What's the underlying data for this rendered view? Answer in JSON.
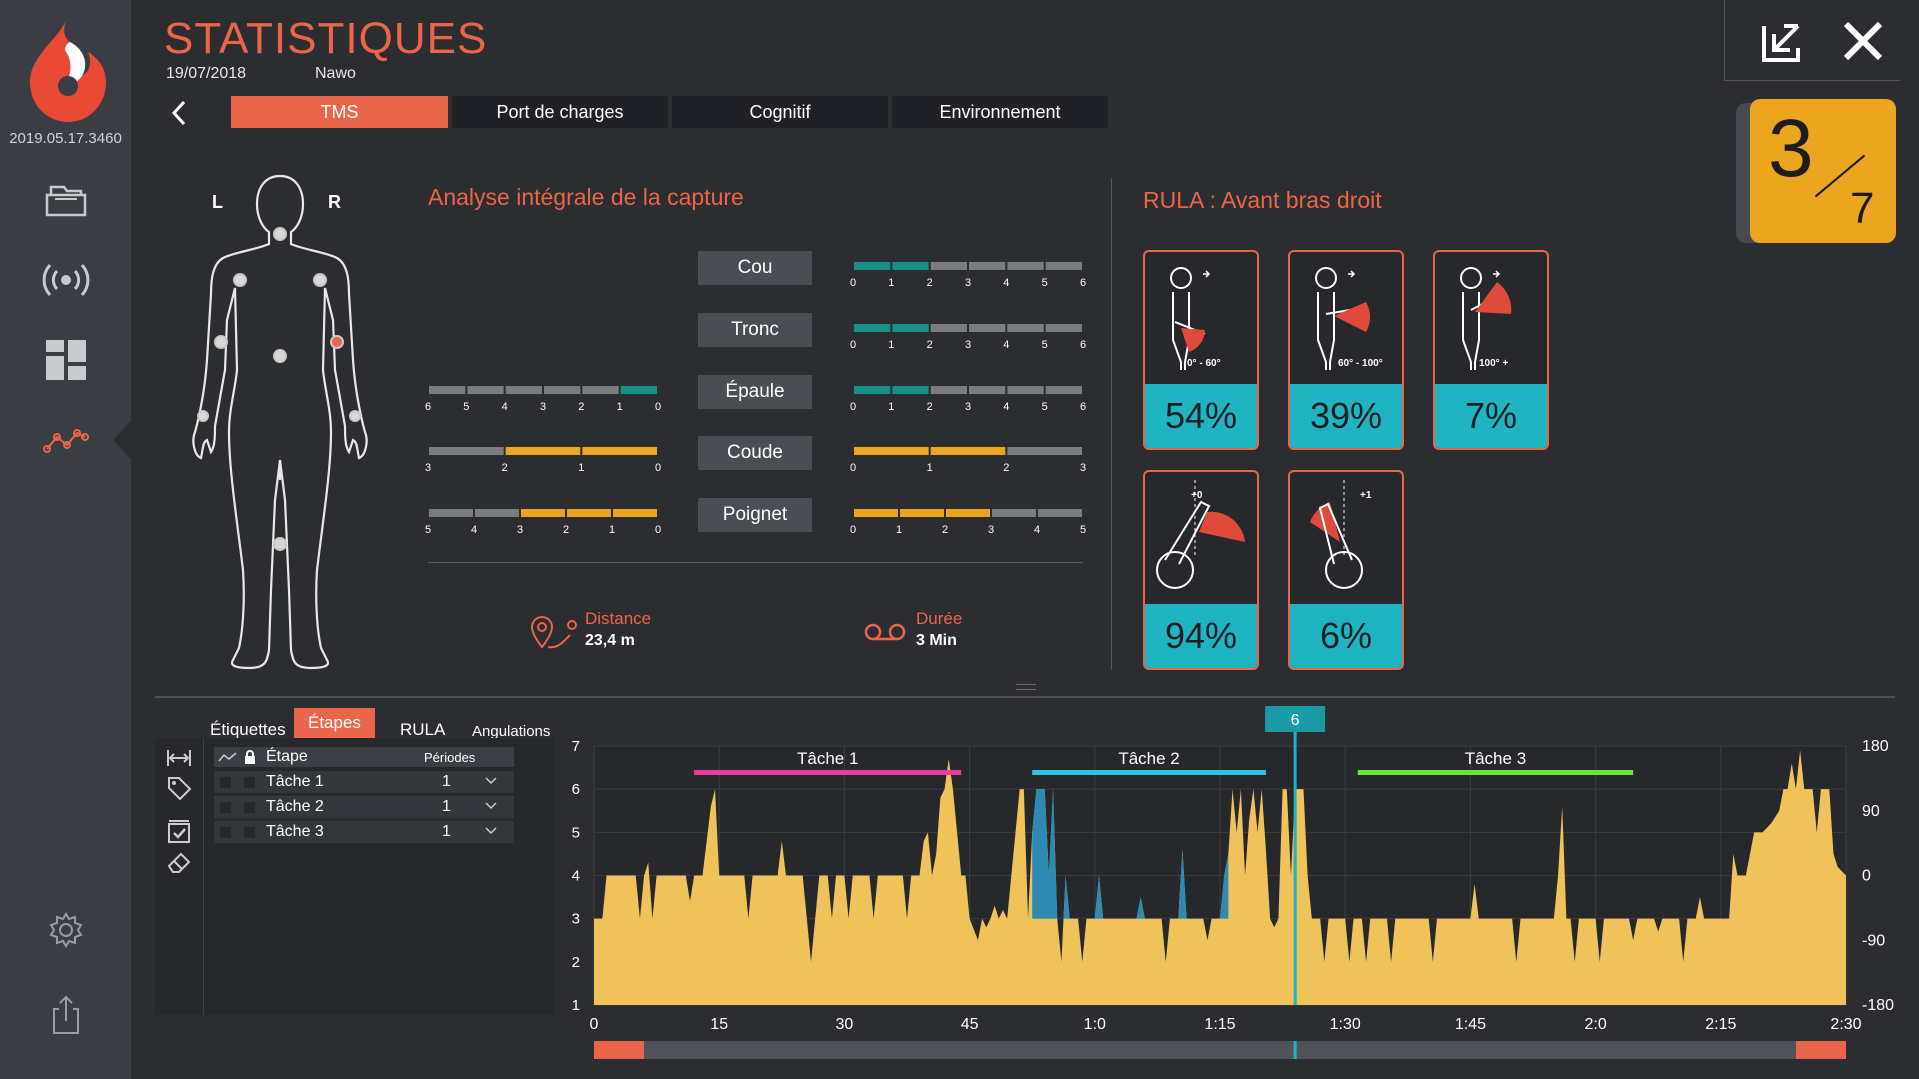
{
  "app": {
    "version": "2019.05.17.3460"
  },
  "header": {
    "title": "STATISTIQUES",
    "date": "19/07/2018",
    "user": "Nawo"
  },
  "tabs": [
    {
      "label": "TMS",
      "active": true
    },
    {
      "label": "Port de charges",
      "active": false
    },
    {
      "label": "Cognitif",
      "active": false
    },
    {
      "label": "Environnement",
      "active": false
    }
  ],
  "score": {
    "value": "3",
    "max": "7",
    "color": "#eba51e"
  },
  "body": {
    "left_label": "L",
    "right_label": "R"
  },
  "analysis": {
    "title": "Analyse intégrale de la capture",
    "segments": [
      {
        "name": "Cou",
        "left": null,
        "right": {
          "scale": 6,
          "filled": 2,
          "color": "#1a8f8a"
        }
      },
      {
        "name": "Tronc",
        "left": null,
        "right": {
          "scale": 6,
          "filled": 2,
          "color": "#1a8f8a"
        }
      },
      {
        "name": "Épaule",
        "left": {
          "scale": 6,
          "filled": 1,
          "color": "#1a8f8a"
        },
        "right": {
          "scale": 6,
          "filled": 2,
          "color": "#1a8f8a"
        }
      },
      {
        "name": "Coude",
        "left": {
          "scale": 3,
          "filled": 2,
          "color": "#eba51e"
        },
        "right": {
          "scale": 3,
          "filled": 2,
          "color": "#eba51e"
        }
      },
      {
        "name": "Poignet",
        "left": {
          "scale": 5,
          "filled": 3,
          "color": "#eba51e"
        },
        "right": {
          "scale": 5,
          "filled": 3,
          "color": "#eba51e"
        }
      }
    ],
    "distance_label": "Distance",
    "distance_value": "23,4 m",
    "duration_label": "Durée",
    "duration_value": "3 Min"
  },
  "rula": {
    "title": "RULA : Avant bras droit",
    "cards": [
      {
        "caption": "0° - 60°",
        "percent": "54%",
        "icon": "forearm-low-icon"
      },
      {
        "caption": "60° - 100°",
        "percent": "39%",
        "icon": "forearm-mid-icon"
      },
      {
        "caption": "100° +",
        "percent": "7%",
        "icon": "forearm-high-icon"
      },
      {
        "caption": "+0",
        "percent": "94%",
        "icon": "forearm-inward-icon"
      },
      {
        "caption": "+1",
        "percent": "6%",
        "icon": "forearm-outward-icon"
      }
    ]
  },
  "bottom": {
    "tabs": [
      {
        "label": "Étiquettes",
        "active": false
      },
      {
        "label": "Étapes",
        "active": true
      },
      {
        "label": "RULA",
        "active": false
      },
      {
        "label": "Angulations",
        "active": false
      }
    ],
    "steps_header": {
      "name": "Étape",
      "periods": "Périodes"
    },
    "steps": [
      {
        "name": "Tâche 1",
        "periods": "1"
      },
      {
        "name": "Tâche 2",
        "periods": "1"
      },
      {
        "name": "Tâche 3",
        "periods": "1"
      }
    ]
  },
  "chart_data": {
    "type": "area",
    "x_ticks": [
      "0",
      "15",
      "30",
      "45",
      "1:0",
      "1:15",
      "1:30",
      "1:45",
      "2:0",
      "2:15",
      "2:30"
    ],
    "y_left_ticks": [
      "7",
      "6",
      "5",
      "4",
      "3",
      "2",
      "1"
    ],
    "y_right_ticks": [
      "180",
      "90",
      "0",
      "-90",
      "-180"
    ],
    "ylim_left": [
      1,
      7
    ],
    "xlim": [
      0,
      150
    ],
    "cursor": {
      "label": "6",
      "x": 84
    },
    "tasks": [
      {
        "name": "Tâche 1",
        "start": 12,
        "end": 44,
        "color": "#e93f9b"
      },
      {
        "name": "Tâche 2",
        "start": 52.5,
        "end": 80.5,
        "color": "#2fc3e8"
      },
      {
        "name": "Tâche 3",
        "start": 91.5,
        "end": 124.5,
        "color": "#6be23a"
      }
    ],
    "highlight": {
      "start": 52.5,
      "end": 76,
      "color": "#2f8ab3"
    },
    "series": [
      {
        "name": "score",
        "color": "#f0c35a",
        "points": [
          [
            0,
            3
          ],
          [
            1,
            3
          ],
          [
            1.5,
            4
          ],
          [
            5,
            4
          ],
          [
            5.5,
            3
          ],
          [
            6,
            4
          ],
          [
            6.5,
            4.3
          ],
          [
            7,
            3
          ],
          [
            7.5,
            4
          ],
          [
            11,
            4
          ],
          [
            11.5,
            3.4
          ],
          [
            12,
            4
          ],
          [
            13,
            4
          ],
          [
            14,
            5.6
          ],
          [
            14.5,
            6
          ],
          [
            15,
            4
          ],
          [
            18,
            4
          ],
          [
            18.5,
            3
          ],
          [
            19,
            4
          ],
          [
            22,
            4
          ],
          [
            22.5,
            4.8
          ],
          [
            23,
            4
          ],
          [
            25,
            4
          ],
          [
            25.5,
            3
          ],
          [
            26,
            2
          ],
          [
            26.5,
            3
          ],
          [
            27,
            4
          ],
          [
            28,
            4
          ],
          [
            28.5,
            3
          ],
          [
            29,
            4
          ],
          [
            30,
            4
          ],
          [
            30.5,
            3
          ],
          [
            31,
            4
          ],
          [
            33,
            4
          ],
          [
            33.5,
            3
          ],
          [
            34,
            4
          ],
          [
            37,
            4
          ],
          [
            37.5,
            3
          ],
          [
            38,
            4
          ],
          [
            39,
            4
          ],
          [
            39.5,
            4.8
          ],
          [
            40,
            5
          ],
          [
            40.5,
            4
          ],
          [
            41,
            4.5
          ],
          [
            41.5,
            5.8
          ],
          [
            42,
            6
          ],
          [
            42.5,
            6.7
          ],
          [
            43,
            6
          ],
          [
            43.5,
            5
          ],
          [
            44,
            4
          ],
          [
            44.5,
            4
          ],
          [
            45,
            3
          ],
          [
            46,
            2.5
          ],
          [
            46.5,
            3
          ],
          [
            47,
            2.8
          ],
          [
            47.5,
            3
          ],
          [
            48,
            3.3
          ],
          [
            48.5,
            3
          ],
          [
            49,
            3.2
          ],
          [
            49.5,
            3
          ],
          [
            50,
            4
          ],
          [
            50.5,
            5
          ],
          [
            51,
            6
          ],
          [
            51.5,
            6
          ],
          [
            52,
            3
          ],
          [
            52.5,
            5
          ],
          [
            53,
            6
          ],
          [
            54,
            6
          ],
          [
            54.5,
            4
          ],
          [
            55,
            6
          ],
          [
            55.5,
            3
          ],
          [
            56,
            2
          ],
          [
            56.5,
            4
          ],
          [
            57,
            3
          ],
          [
            58,
            3
          ],
          [
            58.5,
            2
          ],
          [
            59,
            3
          ],
          [
            60,
            3
          ],
          [
            60.5,
            4
          ],
          [
            61,
            3
          ],
          [
            65,
            3
          ],
          [
            65.5,
            3.5
          ],
          [
            66,
            3
          ],
          [
            68,
            3
          ],
          [
            68.5,
            2
          ],
          [
            69,
            3
          ],
          [
            70,
            3
          ],
          [
            70.5,
            4.6
          ],
          [
            71,
            3
          ],
          [
            73,
            3
          ],
          [
            73.5,
            2.5
          ],
          [
            74,
            3
          ],
          [
            75,
            3
          ],
          [
            75.5,
            4
          ],
          [
            76,
            4.5
          ],
          [
            76.5,
            6
          ],
          [
            77,
            5
          ],
          [
            77.5,
            6
          ],
          [
            78,
            4
          ],
          [
            78.5,
            5.3
          ],
          [
            79,
            6
          ],
          [
            79.5,
            5
          ],
          [
            80,
            6
          ],
          [
            80.5,
            4.6
          ],
          [
            81,
            3
          ],
          [
            81.5,
            2.8
          ],
          [
            82,
            3
          ],
          [
            82.5,
            6
          ],
          [
            83,
            6
          ],
          [
            83.5,
            4
          ],
          [
            84,
            6
          ],
          [
            85,
            6
          ],
          [
            85.5,
            4
          ],
          [
            86,
            3
          ],
          [
            87,
            3
          ],
          [
            87.5,
            2
          ],
          [
            88,
            3
          ],
          [
            90,
            3
          ],
          [
            90.5,
            2
          ],
          [
            91,
            3
          ],
          [
            92,
            3
          ],
          [
            92.5,
            2
          ],
          [
            93,
            3
          ],
          [
            95,
            3
          ],
          [
            95.5,
            2
          ],
          [
            96,
            3
          ],
          [
            100,
            3
          ],
          [
            100.5,
            2
          ],
          [
            101,
            3
          ],
          [
            105,
            3
          ],
          [
            105.5,
            3.8
          ],
          [
            106,
            3
          ],
          [
            110,
            3
          ],
          [
            110.5,
            2
          ],
          [
            111,
            3
          ],
          [
            115,
            3
          ],
          [
            115.5,
            4
          ],
          [
            116,
            5.6
          ],
          [
            116.5,
            3
          ],
          [
            117,
            3
          ],
          [
            117.5,
            2
          ],
          [
            118,
            3
          ],
          [
            120,
            3
          ],
          [
            120.5,
            2
          ],
          [
            121,
            3
          ],
          [
            124,
            3
          ],
          [
            124.5,
            2.5
          ],
          [
            125,
            3
          ],
          [
            127,
            3
          ],
          [
            127.5,
            2.7
          ],
          [
            128,
            3
          ],
          [
            130,
            3
          ],
          [
            130.5,
            2
          ],
          [
            131,
            3
          ],
          [
            132,
            3
          ],
          [
            132.5,
            3.5
          ],
          [
            133,
            3
          ],
          [
            136,
            3
          ],
          [
            136.5,
            4.5
          ],
          [
            137,
            4
          ],
          [
            138,
            4
          ],
          [
            138.5,
            4.5
          ],
          [
            139,
            5
          ],
          [
            140,
            5
          ],
          [
            141,
            5.2
          ],
          [
            142,
            5.5
          ],
          [
            142.5,
            6
          ],
          [
            143,
            6
          ],
          [
            143.5,
            6.6
          ],
          [
            144,
            6
          ],
          [
            144.5,
            6.9
          ],
          [
            145,
            6
          ],
          [
            146,
            6
          ],
          [
            146.5,
            5
          ],
          [
            147,
            6
          ],
          [
            148,
            6
          ],
          [
            148.5,
            4.5
          ],
          [
            149,
            4.2
          ],
          [
            150,
            4
          ]
        ]
      }
    ],
    "scrollbar": {
      "start": 0,
      "end": 150,
      "handle": 84
    }
  },
  "colors": {
    "accent": "#e9664a",
    "teal": "#1eb4c2",
    "amber": "#eba51e",
    "background": "#2b2d31",
    "sidebar": "#3a3d43"
  }
}
